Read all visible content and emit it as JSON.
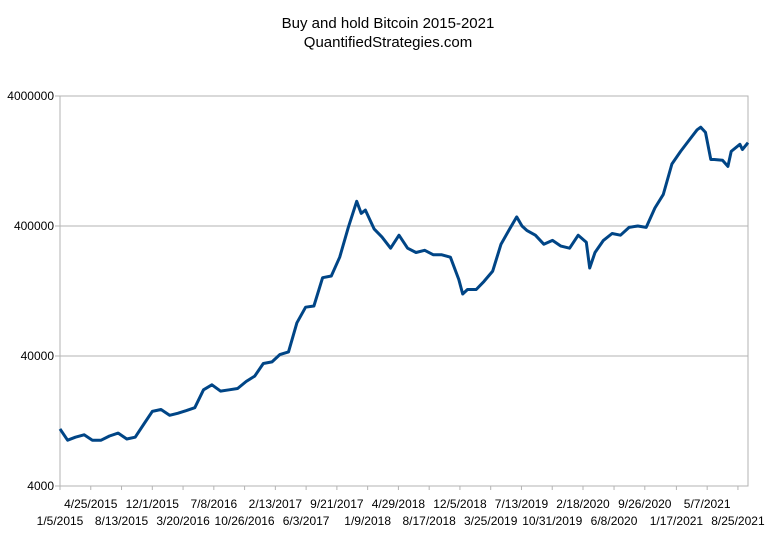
{
  "chart_data": {
    "type": "line",
    "title": "Buy and hold Bitcoin 2015-2021",
    "subtitle": "QuantifiedStrategies.com",
    "xlabel": "",
    "ylabel": "",
    "y_scale": "log",
    "ylim": [
      4000,
      4000000
    ],
    "y_ticks": [
      "4000000",
      "400000",
      "40000",
      "4000"
    ],
    "x_tick_labels_upper": [
      "4/25/2015",
      "12/1/2015",
      "7/8/2016",
      "2/13/2017",
      "9/21/2017",
      "4/29/2018",
      "12/5/2018",
      "7/13/2019",
      "2/18/2020",
      "9/26/2020",
      "5/7/2021"
    ],
    "x_tick_labels_lower": [
      "1/5/2015",
      "8/13/2015",
      "3/20/2016",
      "10/26/2016",
      "6/3/2017",
      "1/9/2018",
      "8/17/2018",
      "3/25/2019",
      "10/31/2019",
      "6/8/2020",
      "1/17/2021",
      "8/25/2021"
    ],
    "grid": true,
    "legend": "none",
    "series_color": "#004586",
    "series": [
      {
        "x": [
          "1/5/2015",
          "2/1/2015",
          "3/1/2015",
          "4/1/2015",
          "5/1/2015",
          "6/1/2015",
          "7/1/2015",
          "8/1/2015",
          "9/1/2015",
          "10/1/2015",
          "11/1/2015",
          "12/1/2015",
          "1/1/2016",
          "2/1/2016",
          "3/1/2016",
          "4/1/2016",
          "5/1/2016",
          "6/1/2016",
          "7/1/2016",
          "8/1/2016",
          "9/1/2016",
          "10/1/2016",
          "11/1/2016",
          "12/1/2016",
          "1/1/2017",
          "2/1/2017",
          "3/1/2017",
          "4/1/2017",
          "5/1/2017",
          "6/1/2017",
          "7/1/2017",
          "8/1/2017",
          "9/1/2017",
          "10/1/2017",
          "11/1/2017",
          "12/1/2017",
          "12/17/2017",
          "1/1/2018",
          "2/1/2018",
          "3/1/2018",
          "4/1/2018",
          "5/1/2018",
          "6/1/2018",
          "7/1/2018",
          "8/1/2018",
          "9/1/2018",
          "10/1/2018",
          "11/1/2018",
          "12/1/2018",
          "12/15/2018",
          "1/1/2019",
          "2/1/2019",
          "3/1/2019",
          "4/1/2019",
          "5/1/2019",
          "6/1/2019",
          "6/26/2019",
          "7/15/2019",
          "8/1/2019",
          "9/1/2019",
          "10/1/2019",
          "11/1/2019",
          "12/1/2019",
          "1/1/2020",
          "2/1/2020",
          "3/1/2020",
          "3/13/2020",
          "4/1/2020",
          "5/1/2020",
          "6/1/2020",
          "7/1/2020",
          "8/1/2020",
          "9/1/2020",
          "10/1/2020",
          "11/1/2020",
          "12/1/2020",
          "1/1/2021",
          "2/1/2021",
          "3/1/2021",
          "4/1/2021",
          "4/14/2021",
          "5/1/2021",
          "5/20/2021",
          "6/1/2021",
          "7/1/2021",
          "7/20/2021",
          "8/1/2021",
          "9/1/2021",
          "9/10/2021",
          "9/30/2021"
        ],
        "values": [
          11000,
          9000,
          9500,
          9900,
          9000,
          9000,
          9700,
          10200,
          9200,
          9500,
          12000,
          15000,
          15500,
          14000,
          14500,
          15200,
          16000,
          22000,
          24000,
          21500,
          22000,
          22500,
          25500,
          28000,
          35000,
          36000,
          41000,
          43000,
          72000,
          95000,
          97000,
          160000,
          165000,
          230000,
          390000,
          620000,
          500000,
          530000,
          380000,
          330000,
          270000,
          340000,
          270000,
          250000,
          260000,
          240000,
          240000,
          230000,
          155000,
          120000,
          130000,
          130000,
          150000,
          180000,
          290000,
          380000,
          470000,
          400000,
          370000,
          340000,
          290000,
          310000,
          280000,
          270000,
          340000,
          300000,
          190000,
          250000,
          310000,
          350000,
          340000,
          390000,
          400000,
          390000,
          550000,
          700000,
          1200000,
          1500000,
          1800000,
          2200000,
          2300000,
          2100000,
          1300000,
          1300000,
          1280000,
          1150000,
          1500000,
          1700000,
          1550000,
          1750000
        ]
      }
    ]
  }
}
